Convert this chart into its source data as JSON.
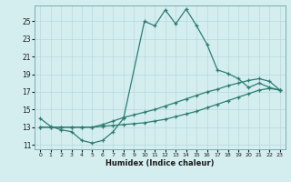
{
  "xlabel": "Humidex (Indice chaleur)",
  "bg_color": "#d4eef0",
  "grid_color": "#b8d8dc",
  "line_color": "#2e7d72",
  "xlim": [
    -0.5,
    23.5
  ],
  "ylim": [
    10.5,
    26.8
  ],
  "yticks": [
    11,
    13,
    15,
    17,
    19,
    21,
    23,
    25
  ],
  "xticks": [
    0,
    1,
    2,
    3,
    4,
    5,
    6,
    7,
    8,
    9,
    10,
    11,
    12,
    13,
    14,
    15,
    16,
    17,
    18,
    19,
    20,
    21,
    22,
    23
  ],
  "series1_x": [
    0,
    1,
    2,
    3,
    4,
    5,
    6,
    7,
    8,
    10,
    11,
    12,
    13,
    14,
    15,
    16,
    17,
    18,
    19,
    20,
    21,
    22,
    23
  ],
  "series1_y": [
    14.0,
    13.1,
    12.7,
    12.5,
    11.5,
    11.2,
    11.5,
    12.5,
    14.0,
    25.0,
    24.5,
    26.3,
    24.7,
    26.4,
    24.5,
    22.4,
    19.5,
    19.1,
    18.5,
    17.5,
    18.0,
    17.5,
    17.2
  ],
  "series2_x": [
    0,
    1,
    2,
    3,
    4,
    5,
    6,
    7,
    8,
    9,
    10,
    11,
    12,
    13,
    14,
    15,
    16,
    17,
    18,
    19,
    20,
    21,
    22,
    23
  ],
  "series2_y": [
    13.0,
    13.0,
    13.0,
    13.0,
    13.0,
    13.0,
    13.1,
    13.2,
    13.3,
    13.4,
    13.5,
    13.7,
    13.9,
    14.2,
    14.5,
    14.8,
    15.2,
    15.6,
    16.0,
    16.4,
    16.8,
    17.2,
    17.4,
    17.2
  ],
  "series3_x": [
    0,
    1,
    2,
    3,
    4,
    5,
    6,
    7,
    8,
    9,
    10,
    11,
    12,
    13,
    14,
    15,
    16,
    17,
    18,
    19,
    20,
    21,
    22,
    23
  ],
  "series3_y": [
    13.0,
    13.0,
    13.0,
    13.0,
    13.0,
    13.0,
    13.3,
    13.7,
    14.1,
    14.4,
    14.7,
    15.0,
    15.4,
    15.8,
    16.2,
    16.6,
    17.0,
    17.3,
    17.7,
    18.0,
    18.3,
    18.5,
    18.2,
    17.2
  ]
}
